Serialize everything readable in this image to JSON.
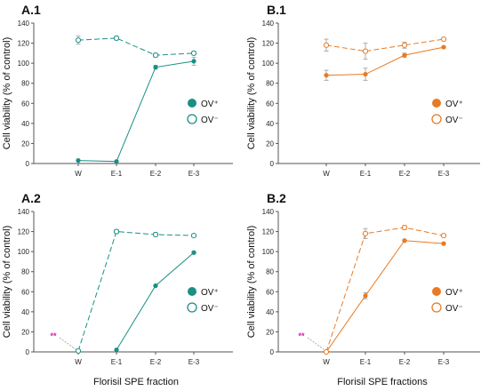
{
  "colors": {
    "teal": "#1a8f86",
    "orange": "#e87a23",
    "magenta": "#cc1aa8",
    "axis": "#555555"
  },
  "bottom_xlabels": {
    "left": "Florisil SPE fraction",
    "right": "Florisil SPE fractions"
  },
  "chart_data": [
    {
      "id": "A1",
      "type": "line",
      "title": "A.1",
      "xlabel": "",
      "ylabel": "Cell viability (% of control)",
      "ylim": [
        0,
        140
      ],
      "yticks": [
        0,
        20,
        40,
        60,
        80,
        100,
        120,
        140
      ],
      "categories": [
        "W",
        "E-1",
        "E-2",
        "E-3"
      ],
      "color": "teal",
      "legend_position": "right",
      "series": [
        {
          "name": "OV⁺",
          "style": "solid",
          "marker": "filled",
          "start": 0,
          "values": [
            3,
            2,
            96,
            102
          ],
          "errors": [
            0,
            0,
            2,
            4
          ]
        },
        {
          "name": "OV⁻",
          "style": "dashed",
          "marker": "open",
          "start": 0,
          "values": [
            123,
            125,
            108,
            110
          ],
          "errors": [
            4,
            2,
            2,
            2
          ]
        }
      ],
      "annotation": ""
    },
    {
      "id": "B1",
      "type": "line",
      "title": "B.1",
      "xlabel": "",
      "ylabel": "Cell viability (% of control)",
      "ylim": [
        0,
        140
      ],
      "yticks": [
        0,
        20,
        40,
        60,
        80,
        100,
        120,
        140
      ],
      "categories": [
        "W",
        "E-1",
        "E-2",
        "E-3"
      ],
      "color": "orange",
      "legend_position": "right",
      "series": [
        {
          "name": "OV⁺",
          "style": "solid",
          "marker": "filled",
          "start": 0,
          "values": [
            88,
            89,
            108,
            116
          ],
          "errors": [
            5,
            6,
            2,
            1
          ]
        },
        {
          "name": "OV⁻",
          "style": "dashed",
          "marker": "open",
          "start": 0,
          "values": [
            118,
            112,
            118,
            124
          ],
          "errors": [
            6,
            8,
            3,
            1
          ]
        }
      ],
      "annotation": ""
    },
    {
      "id": "A2",
      "type": "line",
      "title": "A.2",
      "xlabel": "",
      "ylabel": "Cell viability (% of control)",
      "ylim": [
        0,
        140
      ],
      "yticks": [
        0,
        20,
        40,
        60,
        80,
        100,
        120,
        140
      ],
      "categories": [
        "W",
        "E-1",
        "E-2",
        "E-3"
      ],
      "color": "teal",
      "legend_position": "right",
      "series": [
        {
          "name": "OV⁺",
          "style": "solid",
          "marker": "filled",
          "start": 1,
          "values": [
            1,
            2,
            66,
            99
          ],
          "errors": [
            0,
            0,
            1,
            1
          ]
        },
        {
          "name": "OV⁻",
          "style": "dashed",
          "marker": "open",
          "start": 0,
          "values": [
            1,
            120,
            117,
            116
          ],
          "errors": [
            0,
            2,
            2,
            1
          ]
        }
      ],
      "annotation": "**"
    },
    {
      "id": "B2",
      "type": "line",
      "title": "B.2",
      "xlabel": "",
      "ylabel": "Cell viability (% of control)",
      "ylim": [
        0,
        140
      ],
      "yticks": [
        0,
        20,
        40,
        60,
        80,
        100,
        120,
        140
      ],
      "categories": [
        "W",
        "E-1",
        "E-2",
        "E-3"
      ],
      "color": "orange",
      "legend_position": "right",
      "series": [
        {
          "name": "OV⁺",
          "style": "solid",
          "marker": "filled",
          "start": 0,
          "values": [
            0,
            56,
            111,
            108
          ],
          "errors": [
            0,
            3,
            1,
            1
          ]
        },
        {
          "name": "OV⁻",
          "style": "dashed",
          "marker": "open",
          "start": 0,
          "values": [
            0,
            118,
            124,
            116
          ],
          "errors": [
            0,
            5,
            2,
            1
          ]
        }
      ],
      "annotation": "**"
    }
  ]
}
